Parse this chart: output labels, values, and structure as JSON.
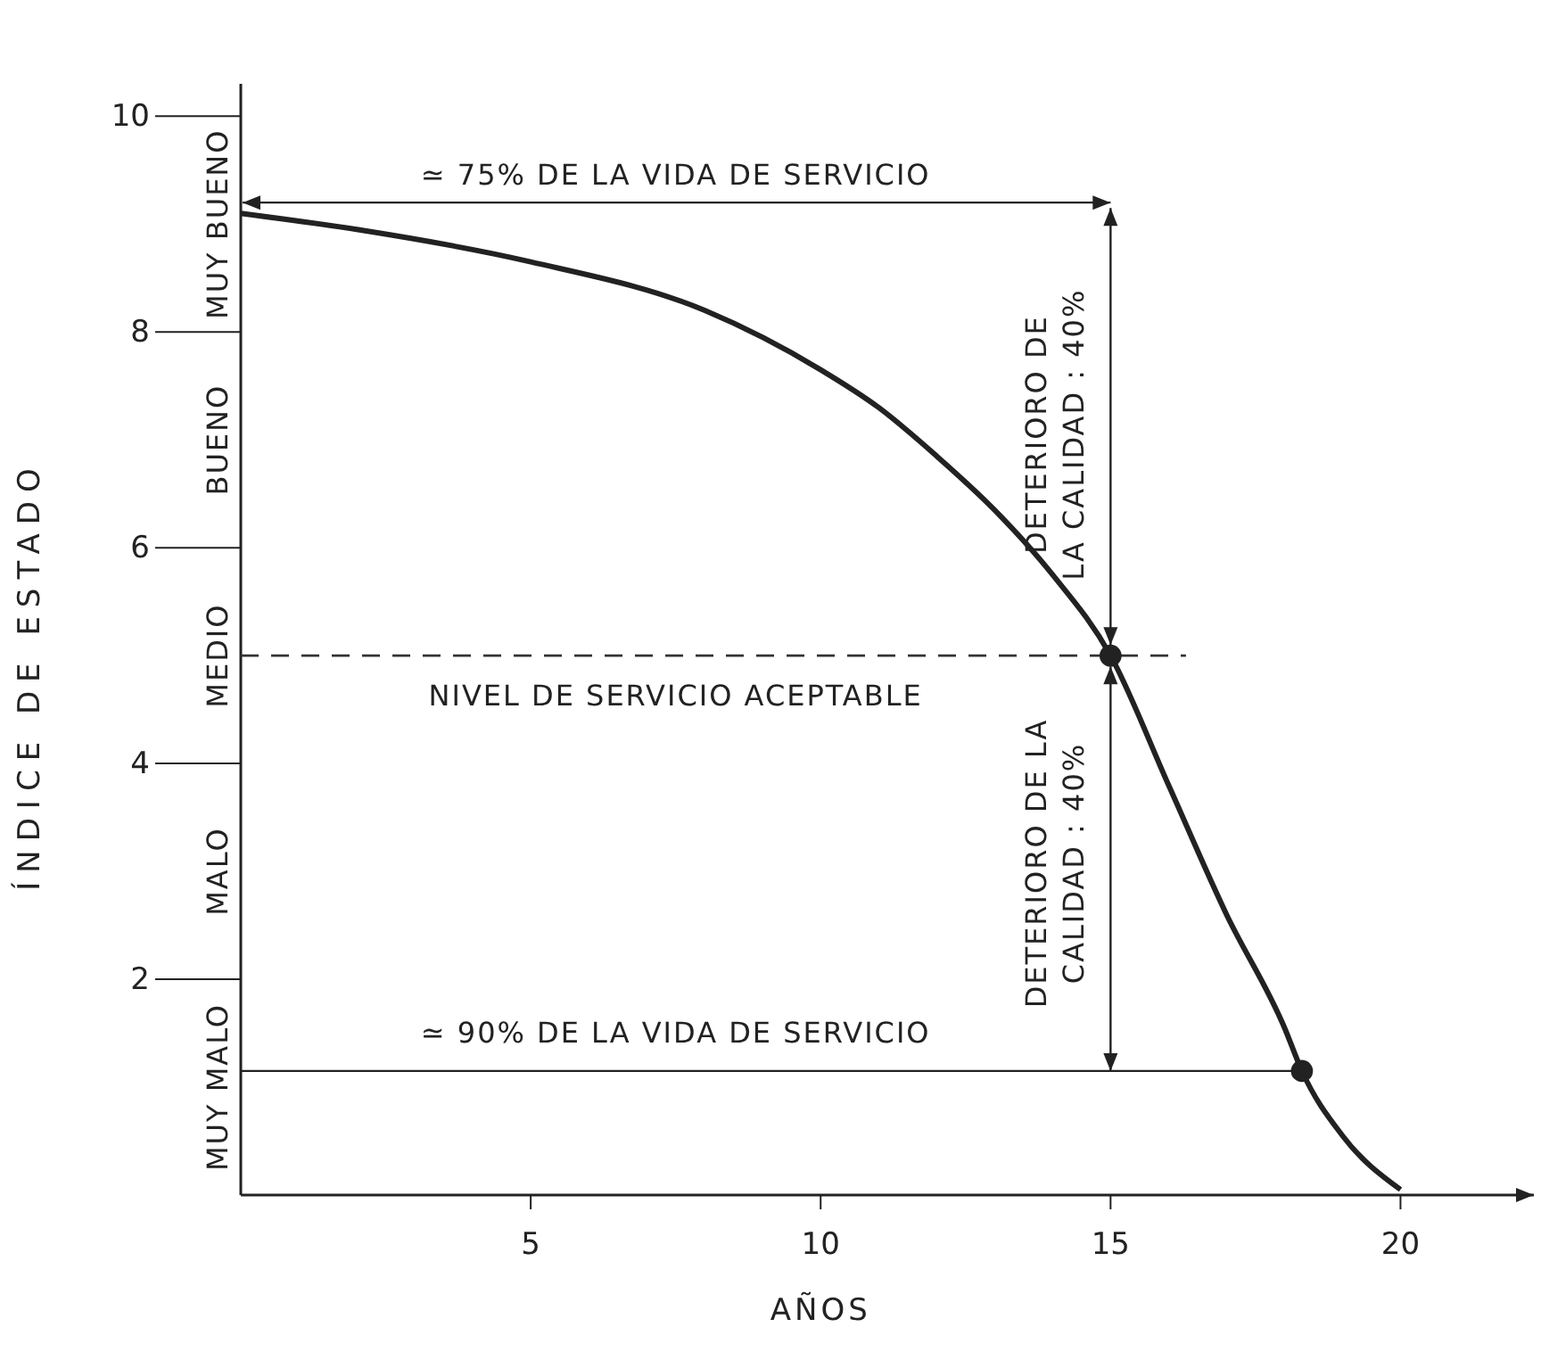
{
  "chart_data": {
    "type": "line",
    "xlabel": "AÑOS",
    "ylabel": "ÍNDICE DE ESTADO",
    "xlim": [
      0,
      22.3
    ],
    "ylim": [
      0,
      10.3
    ],
    "xticks": [
      5,
      10,
      15,
      20
    ],
    "yticks": [
      2,
      4,
      6,
      8,
      10
    ],
    "series": [
      {
        "color": "#222222",
        "marker": "none",
        "line_style": "solid",
        "x": [
          0,
          2,
          5,
          8,
          10,
          11,
          12,
          13,
          14,
          15,
          16,
          17,
          18,
          18.3,
          19,
          20
        ],
        "values": [
          9.1,
          8.95,
          8.65,
          8.2,
          7.65,
          7.3,
          6.85,
          6.35,
          5.75,
          5.0,
          3.8,
          2.6,
          1.55,
          1.15,
          0.55,
          0.05
        ]
      },
      {
        "type": "scatter",
        "color": "#222222",
        "marker": "circle",
        "x": [
          15,
          18.3
        ],
        "values": [
          5.0,
          1.15
        ]
      }
    ],
    "ref_lines": [
      {
        "axis": "y",
        "value": 5.0,
        "label": "NIVEL DE SERVICIO ACEPTABLE",
        "line_style": "dashed",
        "color": "#333333"
      }
    ],
    "annotations": [
      "MUY MALO",
      "MALO",
      "MEDIO",
      "BUENO",
      "MUY BUENO",
      "≃ 75% DE LA VIDA DE SERVICIO",
      "≃ 90% DE LA VIDA DE SERVICIO",
      "DETERIORO DE\nLA CALIDAD : 40%",
      "DETERIORO DE LA\nCALIDAD : 40%"
    ]
  }
}
